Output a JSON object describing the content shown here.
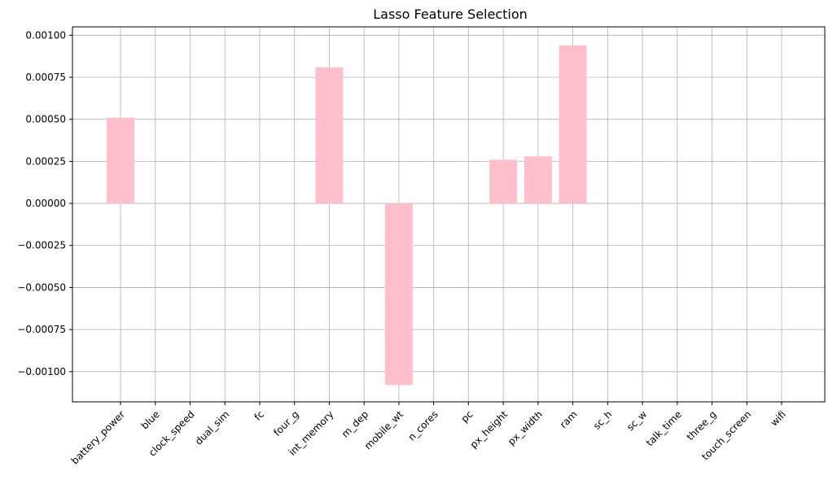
{
  "chart_data": {
    "type": "bar",
    "title": "Lasso Feature Selection",
    "xlabel": "",
    "ylabel": "",
    "categories": [
      "battery_power",
      "blue",
      "clock_speed",
      "dual_sim",
      "fc",
      "four_g",
      "int_memory",
      "m_dep",
      "mobile_wt",
      "n_cores",
      "pc",
      "px_height",
      "px_width",
      "ram",
      "sc_h",
      "sc_w",
      "talk_time",
      "three_g",
      "touch_screen",
      "wifi"
    ],
    "values": [
      0.00051,
      0,
      0,
      0,
      0,
      0,
      0.00081,
      0,
      -0.00108,
      0,
      0,
      0.00026,
      0.00028,
      0.00094,
      0,
      0,
      0,
      0,
      0,
      0
    ],
    "ylim": [
      -0.00118,
      0.00105
    ],
    "yticks": [
      -0.001,
      -0.00075,
      -0.0005,
      -0.00025,
      0,
      0.00025,
      0.0005,
      0.00075,
      0.001
    ],
    "ytick_labels": [
      "−0.00100",
      "−0.00075",
      "−0.00050",
      "−0.00025",
      "0.00000",
      "0.00025",
      "0.00050",
      "0.00075",
      "0.00100"
    ],
    "grid": true,
    "bar_color": "#ffc0cb",
    "grid_color": "#b0b0b0"
  }
}
